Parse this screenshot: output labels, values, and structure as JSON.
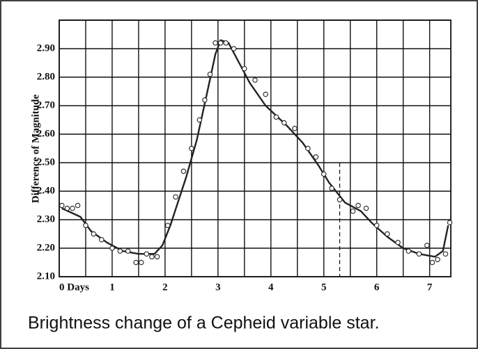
{
  "chart_data": {
    "type": "line",
    "ylabel": "Difference of Magnitude",
    "xlim": [
      0,
      7.4
    ],
    "ylim": [
      2.1,
      3.0
    ],
    "xticks": [
      {
        "value": 0,
        "label": "0 Days"
      },
      1,
      2,
      3,
      4,
      5,
      6,
      7
    ],
    "xgrid_minor": [
      0.5,
      1.5,
      2.5,
      3.5,
      4.5,
      5.5,
      6.5
    ],
    "yticks": [
      {
        "value": 2.1,
        "label": "2.10"
      },
      {
        "value": 2.2,
        "label": "2.20"
      },
      {
        "value": 2.3,
        "label": "2.30"
      },
      {
        "value": 2.4,
        "label": "2.40"
      },
      {
        "value": 2.5,
        "label": "2.50"
      },
      {
        "value": 2.6,
        "label": "2.60"
      },
      {
        "value": 2.7,
        "label": "2.70"
      },
      {
        "value": 2.8,
        "label": "2.80"
      },
      {
        "value": 2.9,
        "label": "2.90"
      },
      3
    ],
    "grid": true,
    "color": "#222222",
    "x": [
      0.05,
      0.4,
      0.6,
      0.9,
      1.2,
      1.5,
      1.8,
      1.95,
      2.1,
      2.4,
      2.6,
      2.8,
      2.95,
      3.05,
      3.2,
      3.4,
      3.6,
      3.9,
      4.3,
      4.6,
      4.9,
      5.1,
      5.4,
      5.7,
      5.9,
      6.2,
      6.5,
      6.8,
      7.1,
      7.25,
      7.35
    ],
    "values": [
      2.34,
      2.31,
      2.26,
      2.22,
      2.19,
      2.18,
      2.18,
      2.21,
      2.28,
      2.45,
      2.58,
      2.75,
      2.88,
      2.93,
      2.92,
      2.85,
      2.78,
      2.7,
      2.63,
      2.57,
      2.49,
      2.43,
      2.36,
      2.33,
      2.29,
      2.24,
      2.2,
      2.18,
      2.17,
      2.19,
      2.28
    ],
    "observations": {
      "x": [
        0.05,
        0.15,
        0.25,
        0.35,
        0.5,
        0.65,
        0.8,
        1.0,
        1.15,
        1.3,
        1.45,
        1.55,
        1.65,
        1.75,
        1.85,
        2.05,
        2.2,
        2.35,
        2.5,
        2.65,
        2.75,
        2.85,
        2.95,
        3.05,
        3.15,
        3.3,
        3.5,
        3.7,
        3.9,
        4.1,
        4.25,
        4.45,
        4.7,
        4.85,
        5.0,
        5.15,
        5.3,
        5.55,
        5.65,
        5.8,
        6.0,
        6.2,
        6.4,
        6.6,
        6.8,
        6.95,
        7.05,
        7.15,
        7.3,
        7.38
      ],
      "values": [
        2.35,
        2.34,
        2.34,
        2.35,
        2.28,
        2.25,
        2.23,
        2.2,
        2.19,
        2.19,
        2.15,
        2.15,
        2.18,
        2.17,
        2.17,
        2.28,
        2.38,
        2.47,
        2.55,
        2.65,
        2.72,
        2.81,
        2.92,
        2.92,
        2.92,
        2.9,
        2.83,
        2.79,
        2.74,
        2.66,
        2.64,
        2.62,
        2.55,
        2.52,
        2.46,
        2.41,
        2.37,
        2.33,
        2.35,
        2.34,
        2.28,
        2.25,
        2.22,
        2.19,
        2.18,
        2.21,
        2.15,
        2.16,
        2.18,
        2.29
      ]
    },
    "marker_line": {
      "x": 5.3,
      "style": "dashed"
    }
  },
  "caption": "Brightness change of a Cepheid variable star."
}
